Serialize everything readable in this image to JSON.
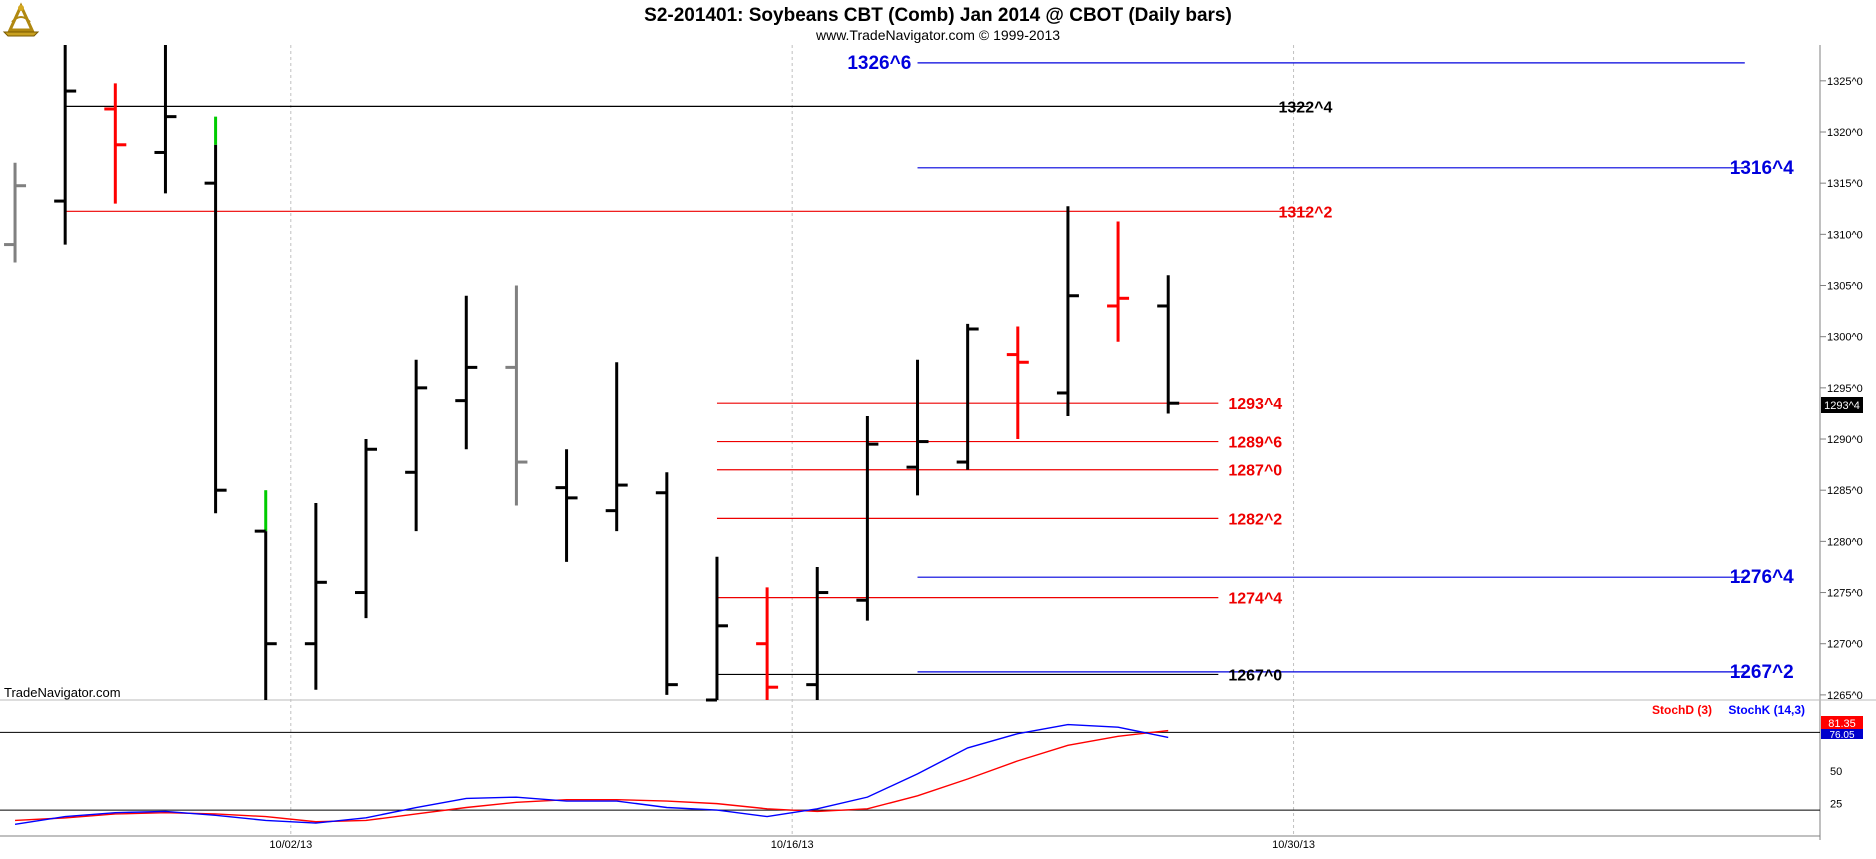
{
  "header": {
    "title": "S2-201401:  Soybeans CBT (Comb) Jan 2014 @ CBOT  (Daily bars)",
    "subtitle": "www.TradeNavigator.com © 1999-2013",
    "watermark": "TradeNavigator.com",
    "logo_icon": "sextant-logo-icon"
  },
  "colors": {
    "background": "#ffffff",
    "up_bar": "#000000",
    "down_bar": "#ff0000",
    "inside_bar": "#808080",
    "extension": "#00cc00",
    "blue_level": "#0000dd",
    "red_level": "#ee0000",
    "black_level": "#000000",
    "stochD": "#ff0000",
    "stochK": "#0000ff"
  },
  "chart_data": [
    {
      "type": "ohlc",
      "title": "S2-201401:  Soybeans CBT (Comb) Jan 2014 @ CBOT  (Daily bars)",
      "x_tick_labels": [
        "10/02/13",
        "10/16/13",
        "10/30/13"
      ],
      "y_tick_labels": [
        "1265^0",
        "1270^0",
        "1275^0",
        "1280^0",
        "1285^0",
        "1290^0",
        "1295^0",
        "1300^0",
        "1305^0",
        "1310^0",
        "1315^0",
        "1320^0",
        "1325^0"
      ],
      "ylim": [
        1264.5,
        1328.5
      ],
      "xlim": [
        -0.3,
        36.0
      ],
      "last_price_label": "1293^4",
      "last_price": 1293.5,
      "bars": [
        {
          "i": 0,
          "o": 1309.0,
          "h": 1317.0,
          "l": 1307.25,
          "c": 1314.75,
          "col": "inside_bar"
        },
        {
          "i": 1,
          "o": 1313.25,
          "h": 1331.0,
          "l": 1309.0,
          "c": 1324.0,
          "col": "up_bar"
        },
        {
          "i": 2,
          "o": 1322.25,
          "h": 1324.75,
          "l": 1313.0,
          "c": 1318.75,
          "col": "down_bar"
        },
        {
          "i": 3,
          "o": 1318.0,
          "h": 1331.0,
          "l": 1314.0,
          "c": 1321.5,
          "col": "up_bar"
        },
        {
          "i": 4,
          "o": 1315.0,
          "h": 1318.75,
          "l": 1282.75,
          "c": 1285.0,
          "col": "up_bar",
          "ext_h": 1321.5
        },
        {
          "i": 5,
          "o": 1281.0,
          "h": 1281.0,
          "l": 1264.5,
          "c": 1270.0,
          "col": "up_bar",
          "ext_h": 1285.0
        },
        {
          "i": 6,
          "o": 1270.0,
          "h": 1283.75,
          "l": 1265.5,
          "c": 1276.0,
          "col": "up_bar"
        },
        {
          "i": 7,
          "o": 1275.0,
          "h": 1290.0,
          "l": 1272.5,
          "c": 1289.0,
          "col": "up_bar"
        },
        {
          "i": 8,
          "o": 1286.75,
          "h": 1297.75,
          "l": 1281.0,
          "c": 1295.0,
          "col": "up_bar"
        },
        {
          "i": 9,
          "o": 1293.75,
          "h": 1304.0,
          "l": 1289.0,
          "c": 1297.0,
          "col": "up_bar"
        },
        {
          "i": 10,
          "o": 1297.0,
          "h": 1305.0,
          "l": 1283.5,
          "c": 1287.75,
          "col": "inside_bar"
        },
        {
          "i": 11,
          "o": 1285.25,
          "h": 1289.0,
          "l": 1278.0,
          "c": 1284.25,
          "col": "up_bar"
        },
        {
          "i": 12,
          "o": 1283.0,
          "h": 1297.5,
          "l": 1281.0,
          "c": 1285.5,
          "col": "up_bar"
        },
        {
          "i": 13,
          "o": 1284.75,
          "h": 1286.75,
          "l": 1265.0,
          "c": 1266.0,
          "col": "up_bar"
        },
        {
          "i": 14,
          "o": 1264.5,
          "h": 1278.5,
          "l": 1264.5,
          "c": 1271.75,
          "col": "up_bar"
        },
        {
          "i": 15,
          "o": 1270.0,
          "h": 1275.5,
          "l": 1264.5,
          "c": 1265.75,
          "col": "down_bar"
        },
        {
          "i": 16,
          "o": 1266.0,
          "h": 1277.5,
          "l": 1264.5,
          "c": 1275.0,
          "col": "up_bar"
        },
        {
          "i": 17,
          "o": 1274.25,
          "h": 1292.25,
          "l": 1272.25,
          "c": 1289.5,
          "col": "up_bar"
        },
        {
          "i": 18,
          "o": 1287.25,
          "h": 1297.75,
          "l": 1284.5,
          "c": 1289.75,
          "col": "up_bar"
        },
        {
          "i": 19,
          "o": 1287.75,
          "h": 1301.25,
          "l": 1287.0,
          "c": 1300.75,
          "col": "up_bar"
        },
        {
          "i": 20,
          "o": 1298.25,
          "h": 1301.0,
          "l": 1290.0,
          "c": 1297.5,
          "col": "down_bar"
        },
        {
          "i": 21,
          "o": 1294.5,
          "h": 1312.75,
          "l": 1292.25,
          "c": 1304.0,
          "col": "up_bar"
        },
        {
          "i": 22,
          "o": 1303.0,
          "h": 1311.25,
          "l": 1299.5,
          "c": 1303.75,
          "col": "down_bar"
        },
        {
          "i": 23,
          "o": 1303.0,
          "h": 1306.0,
          "l": 1292.5,
          "c": 1293.5,
          "col": "up_bar"
        }
      ],
      "levels": [
        {
          "label": "1326^6",
          "value": 1326.75,
          "x1": 18.0,
          "x2": 34.5,
          "col": "blue_level",
          "label_pos": "left",
          "label_x": 16.8
        },
        {
          "label": "1322^4",
          "value": 1322.5,
          "x1": 1.0,
          "x2": 25.8,
          "col": "black_level",
          "label_pos": "right",
          "label_x": 25.2
        },
        {
          "label": "1316^4",
          "value": 1316.5,
          "x1": 18.0,
          "x2": 34.5,
          "col": "blue_level",
          "label_pos": "right",
          "label_x": 34.2
        },
        {
          "label": "1312^2",
          "value": 1312.25,
          "x1": 1.0,
          "x2": 25.8,
          "col": "red_level",
          "label_pos": "right",
          "label_x": 25.2
        },
        {
          "label": "1293^4",
          "value": 1293.5,
          "x1": 14.0,
          "x2": 24.0,
          "col": "red_level",
          "label_pos": "right",
          "label_x": 24.2
        },
        {
          "label": "1289^6",
          "value": 1289.75,
          "x1": 14.0,
          "x2": 24.0,
          "col": "red_level",
          "label_pos": "right",
          "label_x": 24.2
        },
        {
          "label": "1287^0",
          "value": 1287.0,
          "x1": 14.0,
          "x2": 24.0,
          "col": "red_level",
          "label_pos": "right",
          "label_x": 24.2
        },
        {
          "label": "1282^2",
          "value": 1282.25,
          "x1": 14.0,
          "x2": 24.0,
          "col": "red_level",
          "label_pos": "right",
          "label_x": 24.2
        },
        {
          "label": "1276^4",
          "value": 1276.5,
          "x1": 18.0,
          "x2": 34.5,
          "col": "blue_level",
          "label_pos": "right",
          "label_x": 34.2
        },
        {
          "label": "1274^4",
          "value": 1274.5,
          "x1": 14.0,
          "x2": 24.0,
          "col": "red_level",
          "label_pos": "right",
          "label_x": 24.2
        },
        {
          "label": "1267^2",
          "value": 1267.25,
          "x1": 18.0,
          "x2": 34.5,
          "col": "blue_level",
          "label_pos": "right",
          "label_x": 34.2
        },
        {
          "label": "1267^0",
          "value": 1267.0,
          "x1": 14.0,
          "x2": 24.0,
          "col": "black_level",
          "label_pos": "right",
          "label_x": 24.2
        }
      ],
      "grid": true
    },
    {
      "type": "line",
      "legend": [
        "StochD (3)",
        "StochK (14,3)"
      ],
      "legend_position": "top-right",
      "y_tick_labels": [
        "25",
        "50"
      ],
      "ylim": [
        0,
        105
      ],
      "reference_lines": [
        20,
        80
      ],
      "value_labels": [
        "81.35",
        "76.05"
      ],
      "series": [
        {
          "name": "StochD (3)",
          "color": "stochD",
          "values": [
            12,
            14,
            17,
            18,
            17,
            15,
            11,
            12,
            17,
            22,
            26,
            28,
            28,
            27,
            25,
            21,
            19,
            21,
            31,
            44,
            58,
            70,
            77,
            81.35
          ]
        },
        {
          "name": "StochK (14,3)",
          "color": "stochK",
          "values": [
            9,
            15,
            18,
            19,
            16,
            12,
            10,
            14,
            22,
            29,
            30,
            27,
            27,
            22,
            20,
            15,
            21,
            30,
            48,
            68,
            79,
            86,
            84,
            76.05
          ]
        }
      ]
    }
  ]
}
